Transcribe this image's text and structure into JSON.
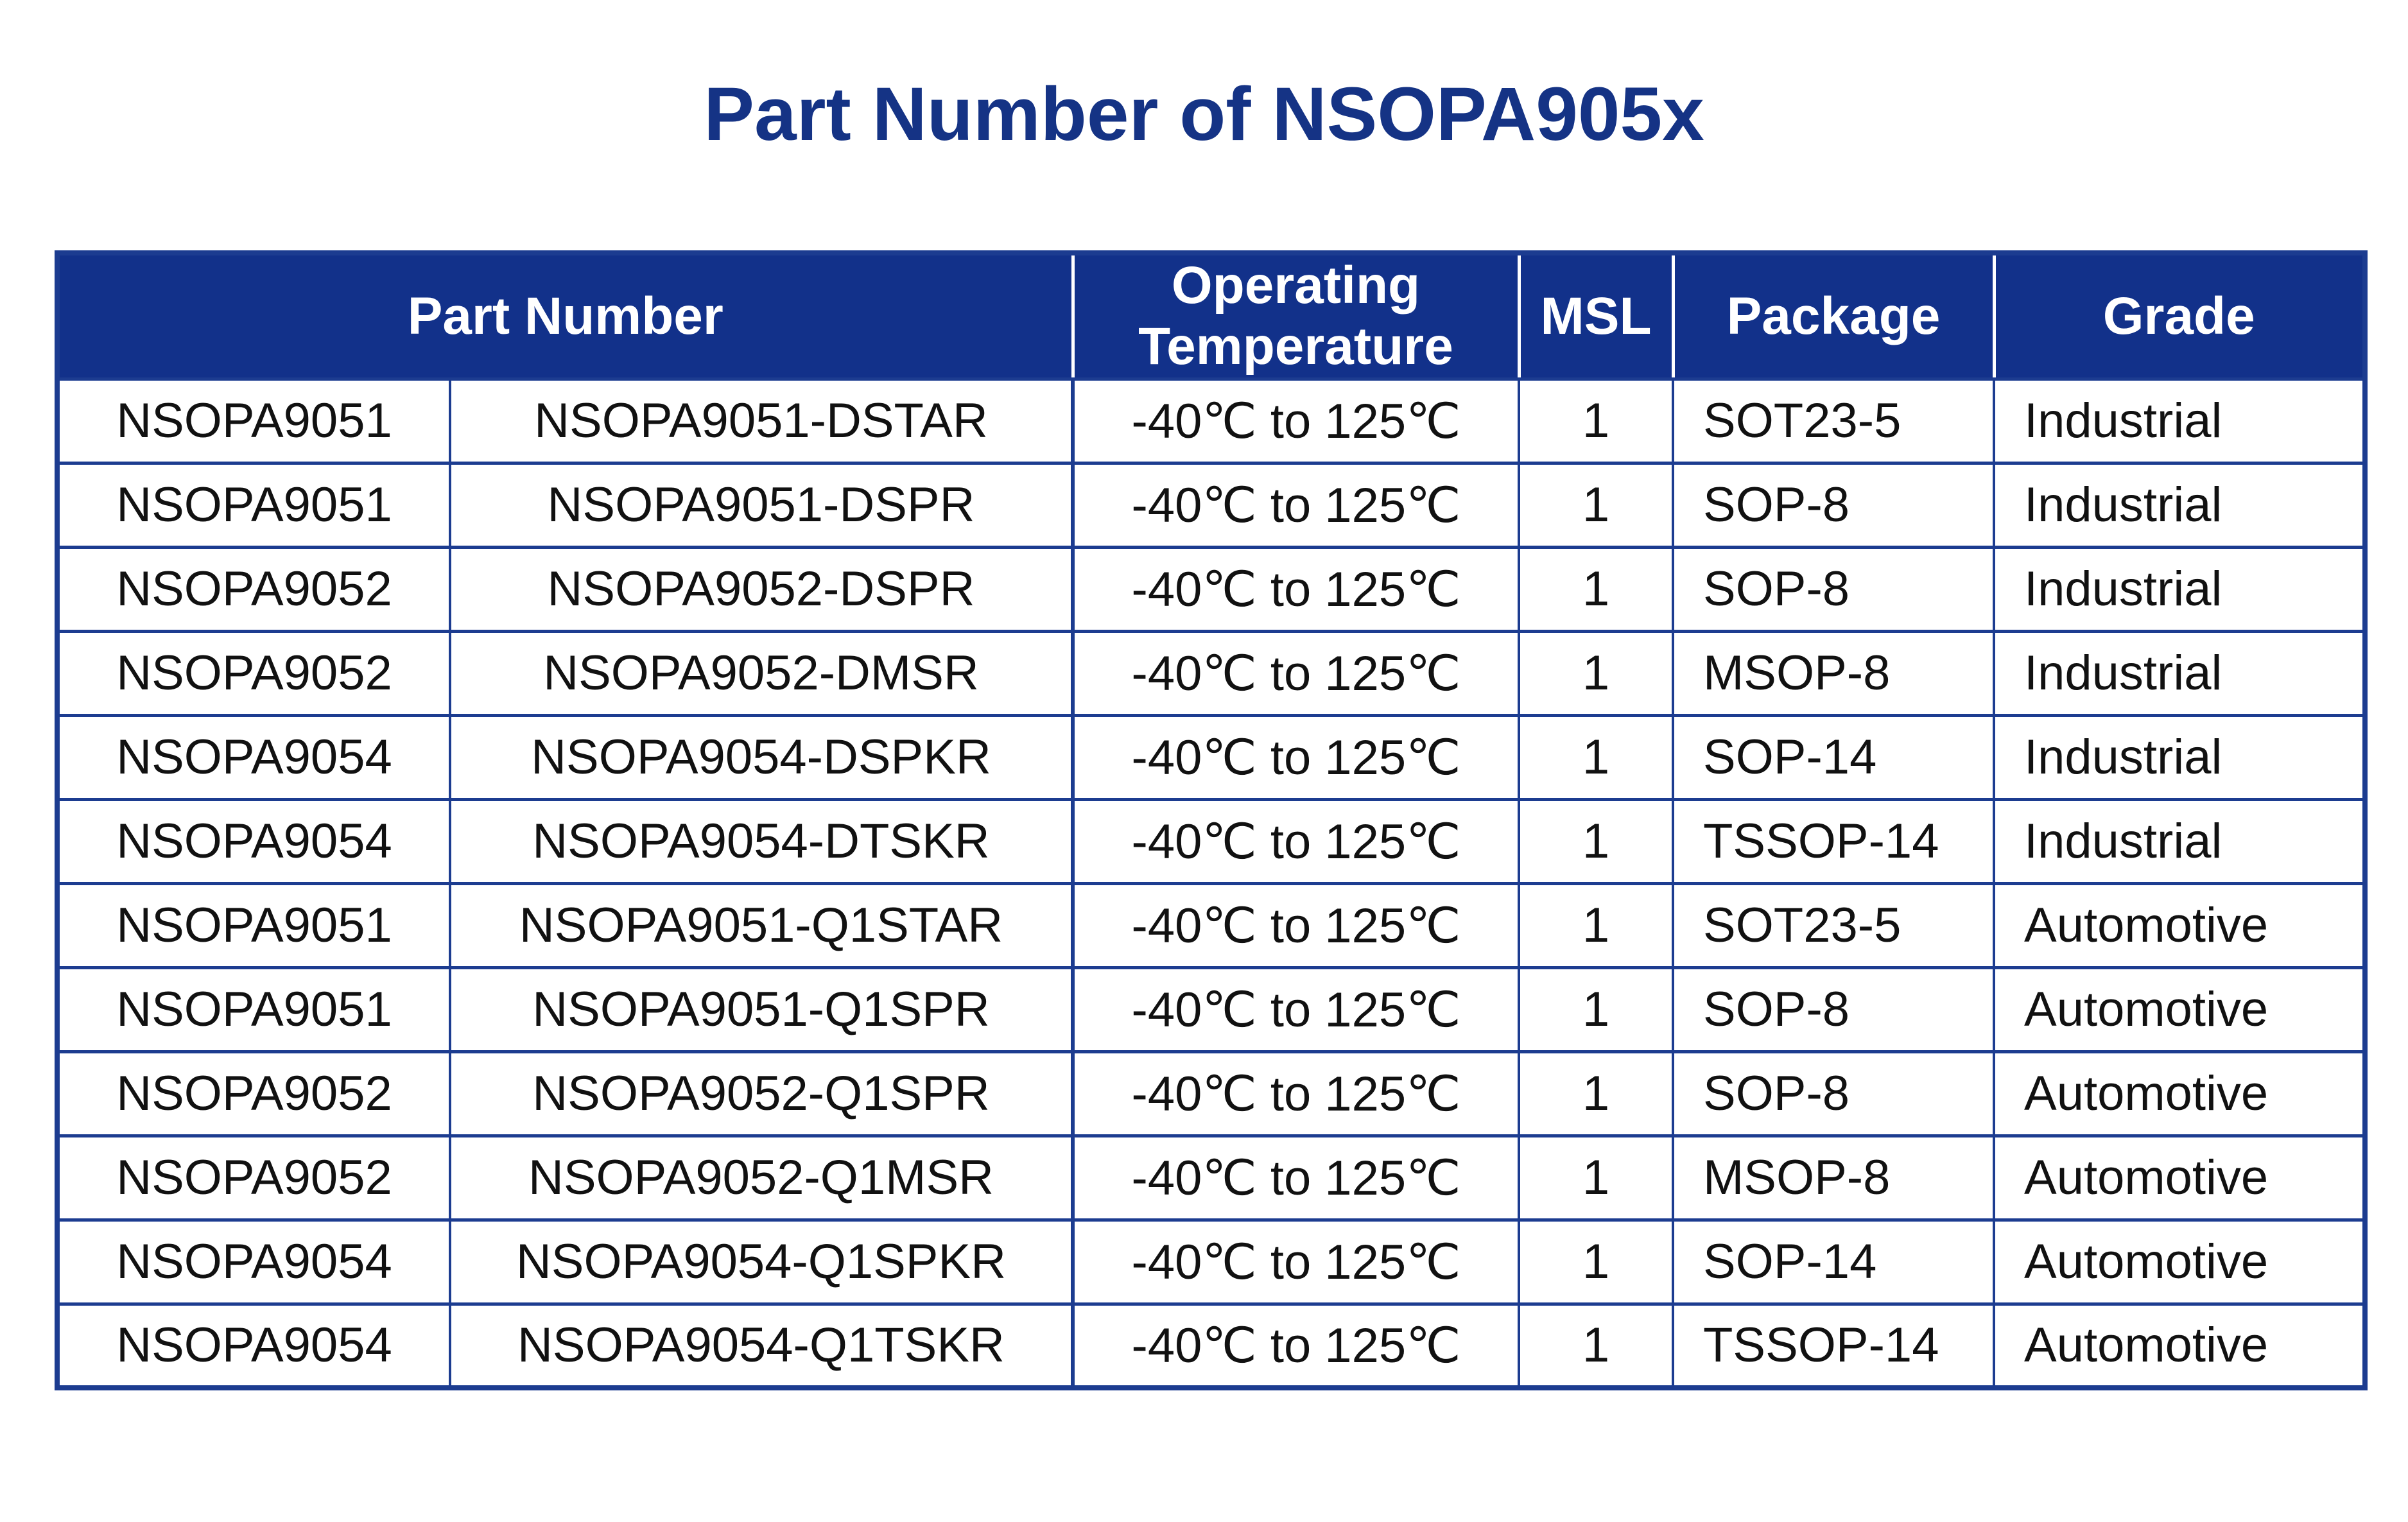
{
  "title": "Part Number of NSOPA905x",
  "colors": {
    "title_blue": "#153385",
    "header_background": "#12318a",
    "header_text": "#ffffff",
    "grid_border": "#1c3c90",
    "cell_text": "#111111",
    "page_background": "#ffffff"
  },
  "table": {
    "headers": [
      {
        "label": "Part Number",
        "colspan": 2
      },
      {
        "label": "Operating Temperature",
        "colspan": 1
      },
      {
        "label": "MSL",
        "colspan": 1
      },
      {
        "label": "Package",
        "colspan": 1
      },
      {
        "label": "Grade",
        "colspan": 1
      }
    ],
    "rows": [
      [
        "NSOPA9051",
        "NSOPA9051-DSTAR",
        "-40℃ to 125℃",
        "1",
        "SOT23-5",
        "Industrial"
      ],
      [
        "NSOPA9051",
        "NSOPA9051-DSPR",
        "-40℃ to 125℃",
        "1",
        "SOP-8",
        "Industrial"
      ],
      [
        "NSOPA9052",
        "NSOPA9052-DSPR",
        "-40℃ to 125℃",
        "1",
        "SOP-8",
        "Industrial"
      ],
      [
        "NSOPA9052",
        "NSOPA9052-DMSR",
        "-40℃ to 125℃",
        "1",
        "MSOP-8",
        "Industrial"
      ],
      [
        "NSOPA9054",
        "NSOPA9054-DSPKR",
        "-40℃ to 125℃",
        "1",
        "SOP-14",
        "Industrial"
      ],
      [
        "NSOPA9054",
        "NSOPA9054-DTSKR",
        "-40℃ to 125℃",
        "1",
        "TSSOP-14",
        "Industrial"
      ],
      [
        "NSOPA9051",
        "NSOPA9051-Q1STAR",
        "-40℃ to 125℃",
        "1",
        "SOT23-5",
        "Automotive"
      ],
      [
        "NSOPA9051",
        "NSOPA9051-Q1SPR",
        "-40℃ to 125℃",
        "1",
        "SOP-8",
        "Automotive"
      ],
      [
        "NSOPA9052",
        "NSOPA9052-Q1SPR",
        "-40℃ to 125℃",
        "1",
        "SOP-8",
        "Automotive"
      ],
      [
        "NSOPA9052",
        "NSOPA9052-Q1MSR",
        "-40℃ to 125℃",
        "1",
        "MSOP-8",
        "Automotive"
      ],
      [
        "NSOPA9054",
        "NSOPA9054-Q1SPKR",
        "-40℃ to 125℃",
        "1",
        "SOP-14",
        "Automotive"
      ],
      [
        "NSOPA9054",
        "NSOPA9054-Q1TSKR",
        "-40℃ to 125℃",
        "1",
        "TSSOP-14",
        "Automotive"
      ]
    ]
  }
}
